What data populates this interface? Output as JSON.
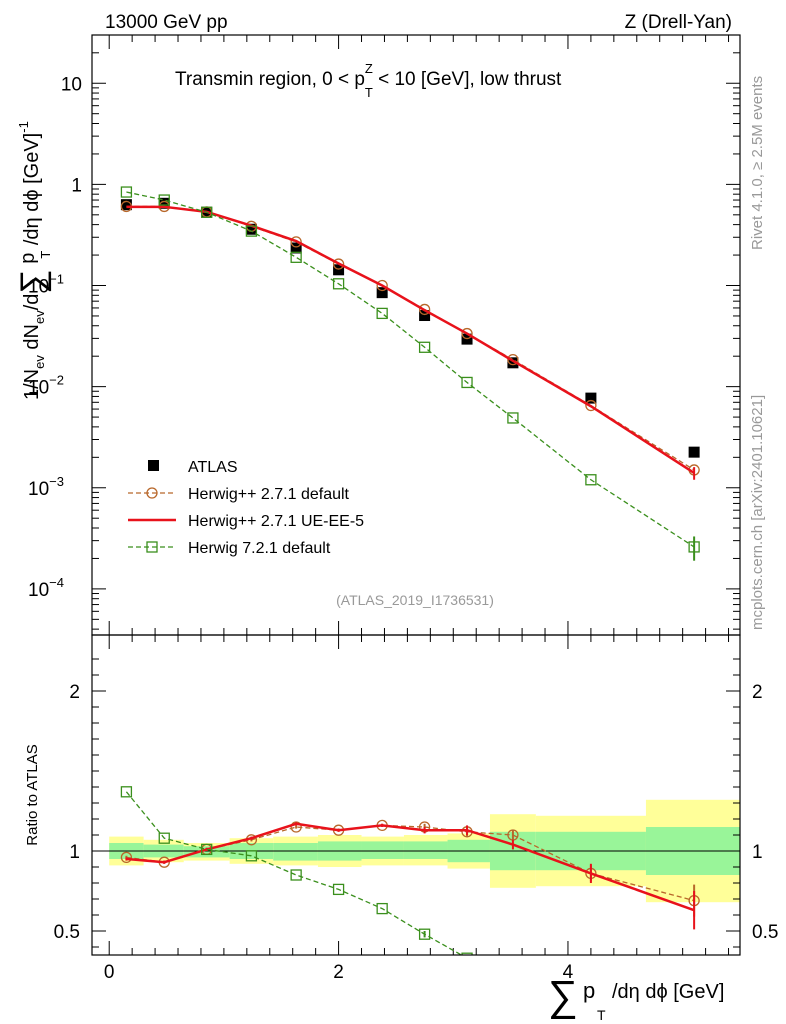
{
  "header": {
    "left": "13000 GeV pp",
    "right": "Z (Drell-Yan)"
  },
  "side_text": {
    "rivet": "Rivet 4.1.0, ≥ 2.5M events",
    "mcplots": "mcplots.cern.ch [arXiv:2401.10621]"
  },
  "analysis_id": "(ATLAS_2019_I1736531)",
  "colors": {
    "atlas": "#000000",
    "herwig271_default": "#b8672a",
    "herwig271_ueee5": "#e8121b",
    "herwig721_default": "#3a8f1c",
    "band_inner": "#99f599",
    "band_outer": "#ffff99"
  },
  "chart_data": [
    {
      "type": "scatter",
      "panel": "main",
      "title": "Transmin region, 0 < p_T^Z < 10 [GeV], low thrust",
      "title_parts": {
        "pre": "Transmin region, 0 < p",
        "sup": "Z",
        "sub": "T",
        "post": " < 10 [GeV], low thrust"
      },
      "ylabel": "1/N_ev dN_ev/d∑ p_T /dη dϕ  [GeV]^-1",
      "yscale": "log",
      "ylim": [
        3.5e-05,
        30
      ],
      "xlim": [
        -0.15,
        5.5
      ],
      "y_ticks": [
        {
          "value": 0.0001,
          "base": "10",
          "exp": "−4"
        },
        {
          "value": 0.001,
          "base": "10",
          "exp": "−3"
        },
        {
          "value": 0.01,
          "base": "10",
          "exp": "−2"
        },
        {
          "value": 0.1,
          "base": "10",
          "exp": "−1"
        },
        {
          "value": 1,
          "base": "1",
          "exp": ""
        },
        {
          "value": 10,
          "base": "10",
          "exp": ""
        }
      ],
      "legend_position": "bottom-left",
      "series": [
        {
          "name": "ATLAS",
          "style": "data",
          "x": [
            0.15,
            0.48,
            0.85,
            1.24,
            1.63,
            2.0,
            2.38,
            2.75,
            3.12,
            3.52,
            4.2,
            5.1
          ],
          "y": [
            0.63,
            0.65,
            0.53,
            0.36,
            0.235,
            0.143,
            0.085,
            0.0505,
            0.0295,
            0.0172,
            0.0077,
            0.00225
          ]
        },
        {
          "name": "Herwig++ 2.7.1 default",
          "style": "dashed-circle",
          "x": [
            0.15,
            0.48,
            0.85,
            1.24,
            1.63,
            2.0,
            2.38,
            2.75,
            3.12,
            3.52,
            4.2,
            5.1
          ],
          "y": [
            0.605,
            0.605,
            0.535,
            0.385,
            0.27,
            0.163,
            0.1,
            0.058,
            0.0335,
            0.0185,
            0.0065,
            0.0015
          ]
        },
        {
          "name": "Herwig++ 2.7.1 UE-EE-5",
          "style": "solid",
          "x": [
            0.15,
            0.48,
            0.85,
            1.24,
            1.63,
            2.0,
            2.38,
            2.75,
            3.12,
            3.52,
            4.2,
            5.1
          ],
          "y": [
            0.6,
            0.6,
            0.535,
            0.39,
            0.275,
            0.165,
            0.1,
            0.057,
            0.0335,
            0.018,
            0.0064,
            0.0014
          ],
          "err": [
            0,
            0,
            0,
            0,
            0,
            0,
            0,
            0,
            0,
            0,
            0,
            0.0002
          ]
        },
        {
          "name": "Herwig 7.2.1 default",
          "style": "dashed-square",
          "x": [
            0.15,
            0.48,
            0.85,
            1.24,
            1.63,
            2.0,
            2.38,
            2.75,
            3.12,
            3.52,
            4.2,
            5.1
          ],
          "y": [
            0.84,
            0.7,
            0.53,
            0.345,
            0.19,
            0.104,
            0.053,
            0.0245,
            0.011,
            0.0049,
            0.0012,
            0.00026
          ],
          "err": [
            0,
            0,
            0,
            0,
            0,
            0,
            0,
            0,
            0,
            0,
            0,
            7e-05
          ]
        }
      ]
    },
    {
      "type": "line",
      "panel": "ratio",
      "ylabel": "Ratio to ATLAS",
      "xlabel": "∑ p_T /dη dϕ [GeV]",
      "ylim": [
        0.35,
        2.35
      ],
      "xlim": [
        -0.15,
        5.5
      ],
      "x_ticks": [
        "0",
        "2",
        "4"
      ],
      "x_tick_values": [
        0,
        2,
        4
      ],
      "y_ticks": [
        "0.5",
        "1",
        "2"
      ],
      "y_tick_values": [
        0.5,
        1,
        2
      ],
      "band_edges": [
        0,
        0.3,
        0.65,
        1.05,
        1.43,
        1.82,
        2.2,
        2.57,
        2.95,
        3.32,
        3.72,
        4.68,
        5.5
      ],
      "band_inner": [
        [
          0.95,
          1.05
        ],
        [
          0.96,
          1.04
        ],
        [
          0.96,
          1.03
        ],
        [
          0.95,
          1.05
        ],
        [
          0.94,
          1.05
        ],
        [
          0.94,
          1.06
        ],
        [
          0.95,
          1.06
        ],
        [
          0.95,
          1.06
        ],
        [
          0.93,
          1.07
        ],
        [
          0.88,
          1.12
        ],
        [
          0.88,
          1.12
        ],
        [
          0.85,
          1.15
        ]
      ],
      "band_outer": [
        [
          0.91,
          1.09
        ],
        [
          0.93,
          1.07
        ],
        [
          0.94,
          1.05
        ],
        [
          0.92,
          1.08
        ],
        [
          0.91,
          1.09
        ],
        [
          0.9,
          1.1
        ],
        [
          0.91,
          1.09
        ],
        [
          0.91,
          1.1
        ],
        [
          0.89,
          1.11
        ],
        [
          0.77,
          1.23
        ],
        [
          0.78,
          1.22
        ],
        [
          0.68,
          1.32
        ]
      ],
      "series": [
        {
          "name": "Herwig++ 2.7.1 default",
          "x": [
            0.15,
            0.48,
            0.85,
            1.24,
            1.63,
            2.0,
            2.38,
            2.75,
            3.12,
            3.52,
            4.2,
            5.1
          ],
          "y": [
            0.96,
            0.93,
            1.01,
            1.07,
            1.15,
            1.13,
            1.16,
            1.15,
            1.12,
            1.1,
            0.86,
            0.69
          ],
          "err": [
            0.01,
            0.01,
            0.01,
            0.01,
            0.01,
            0.01,
            0.01,
            0.02,
            0.03,
            0.03,
            0.05,
            0.1
          ]
        },
        {
          "name": "Herwig++ 2.7.1 UE-EE-5",
          "x": [
            0.15,
            0.48,
            0.85,
            1.24,
            1.63,
            2.0,
            2.38,
            2.75,
            3.12,
            3.52,
            4.2,
            5.1
          ],
          "y": [
            0.95,
            0.93,
            1.01,
            1.08,
            1.17,
            1.13,
            1.16,
            1.13,
            1.13,
            1.04,
            0.86,
            0.63
          ],
          "err": [
            0.01,
            0.01,
            0.01,
            0.01,
            0.01,
            0.01,
            0.01,
            0.02,
            0.03,
            0.03,
            0.06,
            0.12
          ]
        },
        {
          "name": "Herwig 7.2.1 default",
          "x": [
            0.15,
            0.48,
            0.85,
            1.24,
            1.63,
            2.0,
            2.38,
            2.75,
            3.12
          ],
          "y": [
            1.37,
            1.08,
            1.01,
            0.97,
            0.85,
            0.76,
            0.64,
            0.48,
            0.33
          ],
          "err": [
            0,
            0,
            0,
            0,
            0,
            0,
            0,
            0.02,
            0
          ]
        }
      ]
    }
  ]
}
